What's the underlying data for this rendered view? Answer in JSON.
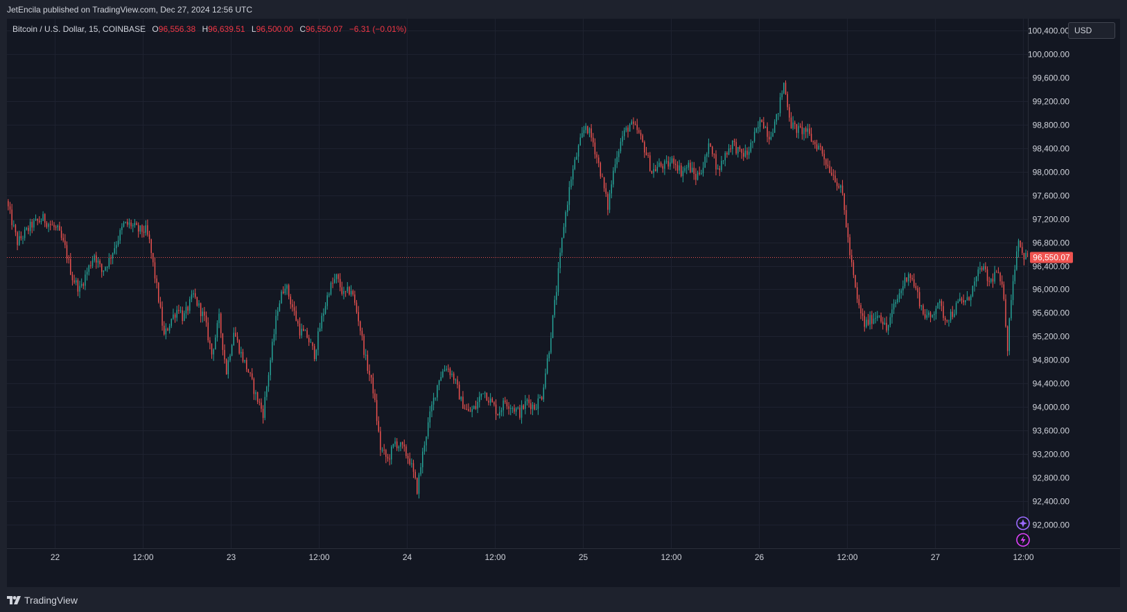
{
  "header": {
    "published": "JetEncila published on TradingView.com, Dec 27, 2024 12:56 UTC"
  },
  "legend": {
    "symbol": "Bitcoin / U.S. Dollar, 15, COINBASE",
    "o_label": "O",
    "o_value": "96,556.38",
    "h_label": "H",
    "h_value": "96,639.51",
    "l_label": "L",
    "l_value": "96,500.00",
    "c_label": "C",
    "c_value": "96,550.07",
    "change": "−6.31 (−0.01%)"
  },
  "currency_button": "USD",
  "footer": {
    "brand": "TradingView"
  },
  "colors": {
    "background": "#131722",
    "grid": "#1e2230",
    "up": "#26a69a",
    "down": "#ef5350",
    "axis_text": "#d1d4dc",
    "price_line": "#ef5350",
    "badge_purple": "#9c6bff",
    "badge_pink": "#e040fb"
  },
  "icons": [
    "tradingview-logo-icon",
    "sparkle-badge-icon",
    "lightning-badge-icon"
  ],
  "chart_data": {
    "type": "candlestick",
    "interval": "15",
    "ylim": [
      91600,
      100600
    ],
    "y_ticks": [
      92000,
      92400,
      92800,
      93200,
      93600,
      94000,
      94400,
      94800,
      95200,
      95600,
      96000,
      96400,
      96800,
      97200,
      97600,
      98000,
      98400,
      98800,
      99200,
      99600,
      100000,
      100400
    ],
    "y_tick_labels": [
      "92,000.00",
      "92,400.00",
      "92,800.00",
      "93,200.00",
      "93,600.00",
      "94,000.00",
      "94,400.00",
      "94,800.00",
      "95,200.00",
      "95,600.00",
      "96,000.00",
      "96,400.00",
      "96,800.00",
      "97,200.00",
      "97,600.00",
      "98,000.00",
      "98,400.00",
      "98,800.00",
      "99,200.00",
      "99,600.00",
      "100,000.00",
      "100,400.00"
    ],
    "x_range_hours": [
      -6.55,
      132.65
    ],
    "x_ticks": [
      0,
      12,
      24,
      36,
      48,
      60,
      72,
      84,
      96,
      108,
      120,
      132
    ],
    "x_tick_labels": [
      "22",
      "12:00",
      "23",
      "12:00",
      "24",
      "12:00",
      "25",
      "12:00",
      "26",
      "12:00",
      "27",
      "12:00"
    ],
    "last_price": 96550.07,
    "last_price_label": "96,550.07",
    "path_points": [
      [
        -6.5,
        97500
      ],
      [
        -5,
        96800
      ],
      [
        -3,
        97100
      ],
      [
        -1.5,
        97200
      ],
      [
        0.5,
        97000
      ],
      [
        1.5,
        96700
      ],
      [
        2.5,
        96200
      ],
      [
        3.5,
        96000
      ],
      [
        4.5,
        96300
      ],
      [
        5.5,
        96600
      ],
      [
        6.5,
        96300
      ],
      [
        7.5,
        96500
      ],
      [
        8.5,
        96800
      ],
      [
        9.5,
        97100
      ],
      [
        10.5,
        97100
      ],
      [
        11.5,
        97000
      ],
      [
        12.5,
        97000
      ],
      [
        13,
        96800
      ],
      [
        14.3,
        95800
      ],
      [
        15,
        95200
      ],
      [
        16,
        95500
      ],
      [
        17,
        95700
      ],
      [
        17.6,
        95500
      ],
      [
        19,
        95900
      ],
      [
        20.5,
        95500
      ],
      [
        21.5,
        94900
      ],
      [
        22.5,
        95500
      ],
      [
        23.5,
        94600
      ],
      [
        24.5,
        95300
      ],
      [
        25.5,
        94900
      ],
      [
        26.5,
        94600
      ],
      [
        27.5,
        94200
      ],
      [
        28.5,
        93900
      ],
      [
        29.5,
        94800
      ],
      [
        30.5,
        95700
      ],
      [
        31.5,
        96100
      ],
      [
        32.5,
        95700
      ],
      [
        33.5,
        95300
      ],
      [
        34.5,
        95200
      ],
      [
        35.5,
        94900
      ],
      [
        36.5,
        95500
      ],
      [
        37.5,
        96000
      ],
      [
        38.5,
        96200
      ],
      [
        39.5,
        95900
      ],
      [
        40.5,
        96000
      ],
      [
        41.5,
        95500
      ],
      [
        42.5,
        94800
      ],
      [
        43.5,
        94300
      ],
      [
        44.5,
        93300
      ],
      [
        45.5,
        93100
      ],
      [
        46.5,
        93400
      ],
      [
        47.5,
        93300
      ],
      [
        48.5,
        93100
      ],
      [
        49.5,
        92600
      ],
      [
        50.5,
        93400
      ],
      [
        51.5,
        94000
      ],
      [
        52.5,
        94500
      ],
      [
        53.5,
        94700
      ],
      [
        54.5,
        94500
      ],
      [
        55.5,
        94100
      ],
      [
        56.5,
        93900
      ],
      [
        57.5,
        94000
      ],
      [
        58.5,
        94300
      ],
      [
        59.5,
        94100
      ],
      [
        60.5,
        93900
      ],
      [
        61.5,
        94100
      ],
      [
        62.5,
        94000
      ],
      [
        63.5,
        93900
      ],
      [
        64.5,
        94100
      ],
      [
        65.5,
        94000
      ],
      [
        66.5,
        94200
      ],
      [
        67.5,
        95000
      ],
      [
        68.5,
        96000
      ],
      [
        69.5,
        97100
      ],
      [
        70.5,
        97900
      ],
      [
        71.5,
        98400
      ],
      [
        72.5,
        98800
      ],
      [
        73.5,
        98500
      ],
      [
        74.5,
        98000
      ],
      [
        75.5,
        97400
      ],
      [
        76.5,
        98200
      ],
      [
        77.5,
        98600
      ],
      [
        78.5,
        98800
      ],
      [
        79.5,
        98700
      ],
      [
        80.5,
        98400
      ],
      [
        81.5,
        98000
      ],
      [
        82.5,
        98100
      ],
      [
        83.5,
        98100
      ],
      [
        84.5,
        98200
      ],
      [
        85.5,
        98000
      ],
      [
        86.5,
        98100
      ],
      [
        87.5,
        97900
      ],
      [
        88.5,
        98100
      ],
      [
        89.5,
        98500
      ],
      [
        90.5,
        98000
      ],
      [
        91.5,
        98300
      ],
      [
        92.5,
        98500
      ],
      [
        93.5,
        98300
      ],
      [
        94.5,
        98300
      ],
      [
        95.5,
        98600
      ],
      [
        96.5,
        98900
      ],
      [
        97.5,
        98600
      ],
      [
        98.5,
        98900
      ],
      [
        99.5,
        99500
      ],
      [
        100.5,
        98800
      ],
      [
        101.5,
        98700
      ],
      [
        102.5,
        98700
      ],
      [
        103.5,
        98500
      ],
      [
        104.5,
        98400
      ],
      [
        105.5,
        98100
      ],
      [
        106.5,
        97900
      ],
      [
        107.5,
        97600
      ],
      [
        108.5,
        96600
      ],
      [
        109.5,
        95800
      ],
      [
        110.5,
        95400
      ],
      [
        111.5,
        95500
      ],
      [
        112.5,
        95600
      ],
      [
        113.5,
        95300
      ],
      [
        114.5,
        95700
      ],
      [
        115.5,
        96000
      ],
      [
        116.5,
        96300
      ],
      [
        117.5,
        96000
      ],
      [
        118.5,
        95600
      ],
      [
        119.5,
        95500
      ],
      [
        120.5,
        95800
      ],
      [
        121.5,
        95500
      ],
      [
        122.5,
        95600
      ],
      [
        123.5,
        95800
      ],
      [
        124.5,
        95800
      ],
      [
        125.5,
        96100
      ],
      [
        126.5,
        96400
      ],
      [
        127.5,
        96100
      ],
      [
        128.5,
        96300
      ],
      [
        129.5,
        95900
      ],
      [
        130,
        95000
      ],
      [
        130.5,
        95900
      ],
      [
        131,
        96400
      ],
      [
        131.5,
        96900
      ],
      [
        132,
        96600
      ],
      [
        132.6,
        96550
      ]
    ]
  }
}
